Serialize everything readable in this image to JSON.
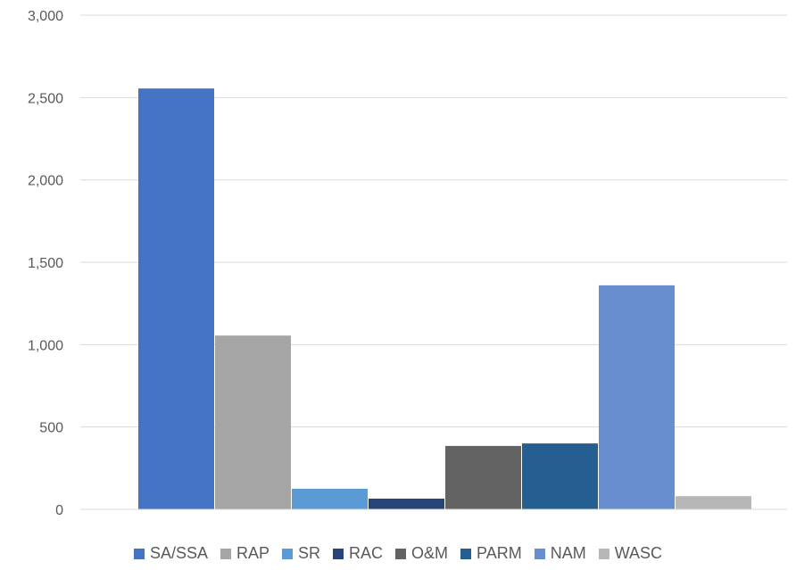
{
  "chart_data": {
    "type": "bar",
    "title": "",
    "xlabel": "",
    "ylabel": "",
    "ylim": [
      0,
      3000
    ],
    "yticks": [
      0,
      500,
      1000,
      1500,
      2000,
      2500,
      3000
    ],
    "ytick_labels": [
      "0",
      "500",
      "1,000",
      "1,500",
      "2,000",
      "2,500",
      "3,000"
    ],
    "grid": "horizontal",
    "legend_position": "bottom",
    "series": [
      {
        "name": "SA/SSA",
        "value": 2555,
        "color": "#4472C4"
      },
      {
        "name": "RAP",
        "value": 1055,
        "color": "#A5A5A5"
      },
      {
        "name": "SR",
        "value": 125,
        "color": "#5B9BD5"
      },
      {
        "name": "RAC",
        "value": 65,
        "color": "#264478"
      },
      {
        "name": "O&M",
        "value": 385,
        "color": "#636363"
      },
      {
        "name": "PARM",
        "value": 400,
        "color": "#255E91"
      },
      {
        "name": "NAM",
        "value": 1360,
        "color": "#698ED0"
      },
      {
        "name": "WASC",
        "value": 80,
        "color": "#B7B7B7"
      }
    ]
  }
}
